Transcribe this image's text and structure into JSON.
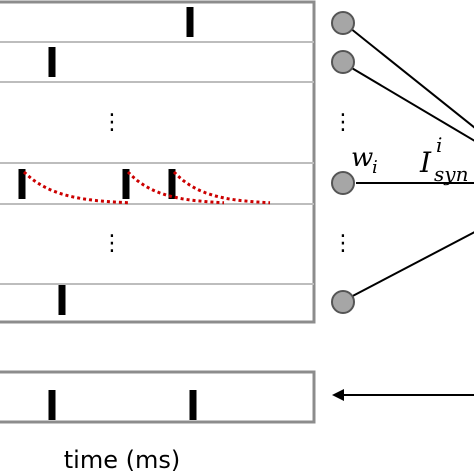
{
  "figure": {
    "input_raster": {
      "rows": [
        {
          "spikes_ms": [
            190
          ]
        },
        {
          "spikes_ms": [
            52
          ]
        },
        {
          "ellipsis": true
        },
        {
          "spikes_ms": [
            22,
            126,
            172
          ],
          "psc_traces": true
        },
        {
          "ellipsis": true
        },
        {
          "spikes_ms": [
            62
          ]
        }
      ],
      "ellipsis_glyph": "⋮"
    },
    "output_raster": {
      "spikes_ms": [
        52,
        193
      ]
    },
    "neurons": {
      "count": 4,
      "ellipsis_glyph": "⋮"
    },
    "labels": {
      "weight_symbol": "w",
      "weight_subscript": "i",
      "current_symbol": "I",
      "current_superscript": "i",
      "current_subscript": "syn",
      "time_axis": "time (ms)"
    },
    "colors": {
      "frame": "#8c8c8c",
      "row_line": "#bdbdbd",
      "spike": "#000000",
      "psc_trace": "#cc0000",
      "neuron_fill": "#a6a6a6",
      "neuron_stroke": "#555555",
      "connection": "#000000"
    }
  }
}
